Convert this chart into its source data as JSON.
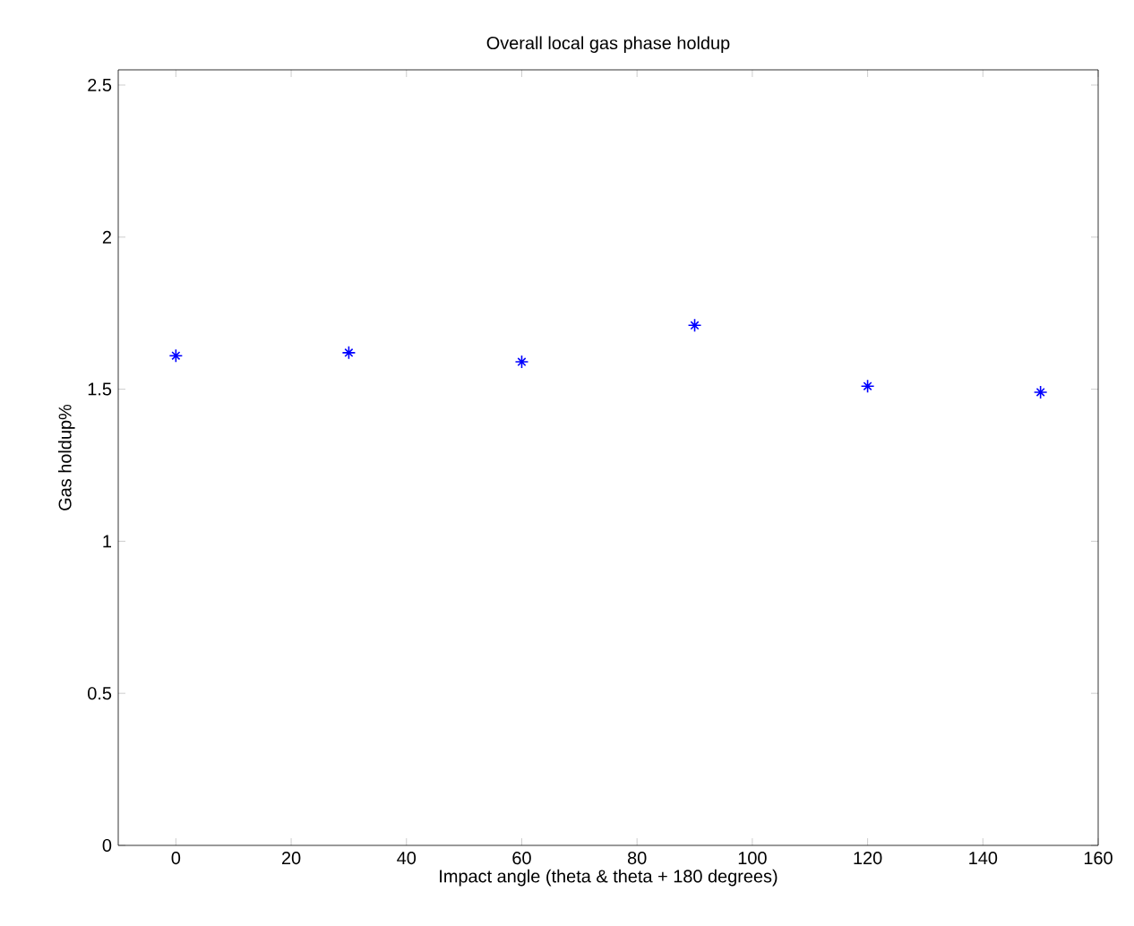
{
  "chart_data": {
    "type": "scatter",
    "title": "Overall local gas phase holdup",
    "xlabel": "Impact angle (theta & theta + 180 degrees)",
    "ylabel": "Gas holdup%",
    "x": [
      0,
      30,
      60,
      90,
      120,
      150
    ],
    "series": [
      {
        "color": "#0000ff",
        "values": [
          1.61,
          1.62,
          1.59,
          1.71,
          1.51,
          1.49
        ]
      }
    ],
    "marker": "cross",
    "xlim": [
      -10,
      160
    ],
    "ylim": [
      0,
      2.55
    ],
    "xticks": [
      0,
      20,
      40,
      60,
      80,
      100,
      120,
      140,
      160
    ],
    "yticks": [
      0,
      0.5,
      1,
      1.5,
      2,
      2.5
    ],
    "grid": false
  }
}
